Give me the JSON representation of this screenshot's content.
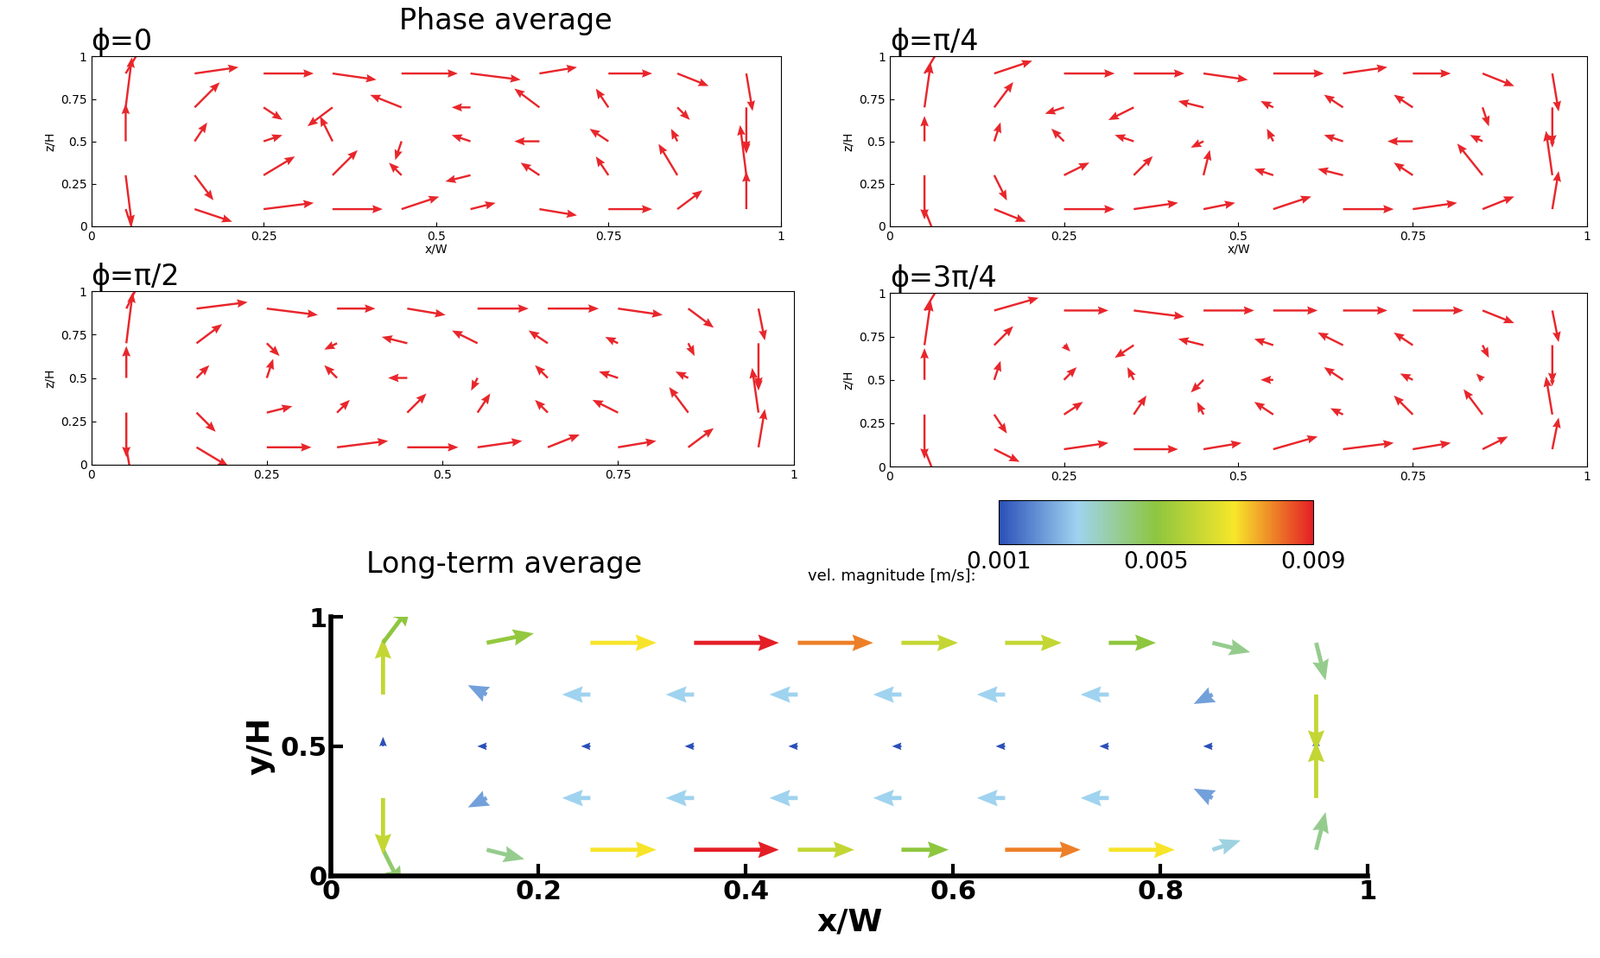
{
  "figure_texts": {
    "phase_heading": "Phase average",
    "long_term_heading": "Long-term average"
  },
  "chart_data": [
    {
      "type": "quiver",
      "title": "ϕ=0",
      "x_label": "x/W",
      "y_label": "z/H",
      "xlim": [
        0,
        1
      ],
      "ylim": [
        0,
        1
      ],
      "xticks": [
        0,
        0.25,
        0.5,
        0.75,
        1
      ],
      "yticks": [
        0,
        0.25,
        0.5,
        0.75,
        1
      ],
      "color": "#e8262b",
      "x": [
        0.05,
        0.15,
        0.25,
        0.35,
        0.45,
        0.55,
        0.65,
        0.75,
        0.85,
        0.95
      ],
      "y": [
        0.1,
        0.3,
        0.5,
        0.7,
        0.9
      ],
      "u": [
        [
          0.002,
          0.006,
          0.008,
          0.008,
          0.006,
          0.004,
          0.006,
          0.007,
          0.004,
          0.0
        ],
        [
          0.001,
          0.003,
          0.005,
          0.004,
          -0.002,
          -0.004,
          -0.003,
          -0.002,
          -0.003,
          -0.001
        ],
        [
          0.0,
          0.002,
          0.003,
          -0.002,
          -0.001,
          -0.003,
          -0.004,
          -0.003,
          -0.001,
          0.0
        ],
        [
          0.001,
          0.004,
          0.003,
          -0.004,
          -0.005,
          -0.003,
          -0.004,
          -0.002,
          0.002,
          0.0
        ],
        [
          0.003,
          0.007,
          0.008,
          0.007,
          0.009,
          0.008,
          0.006,
          0.007,
          0.005,
          0.001
        ]
      ],
      "v": [
        [
          -0.006,
          -0.002,
          0.001,
          0.0,
          0.002,
          0.001,
          -0.001,
          0.0,
          0.003,
          0.006
        ],
        [
          -0.008,
          -0.004,
          0.003,
          0.004,
          0.002,
          -0.001,
          0.002,
          0.003,
          0.005,
          0.008
        ],
        [
          0.006,
          0.003,
          0.001,
          0.004,
          -0.003,
          0.001,
          0.0,
          0.002,
          0.002,
          -0.002
        ],
        [
          0.008,
          0.004,
          -0.002,
          -0.003,
          0.002,
          0.0,
          0.003,
          0.003,
          -0.002,
          -0.007
        ],
        [
          0.005,
          0.001,
          0.0,
          -0.001,
          0.0,
          -0.001,
          0.001,
          0.0,
          -0.002,
          -0.006
        ]
      ]
    },
    {
      "type": "quiver",
      "title": "ϕ=π/4",
      "x_label": "x/W",
      "y_label": "z/H",
      "xlim": [
        0,
        1
      ],
      "ylim": [
        0,
        1
      ],
      "xticks": [
        0,
        0.25,
        0.5,
        0.75,
        1
      ],
      "yticks": [
        0,
        0.25,
        0.5,
        0.75,
        1
      ],
      "color": "#e8262b",
      "x": [
        0.05,
        0.15,
        0.25,
        0.35,
        0.45,
        0.55,
        0.65,
        0.75,
        0.85,
        0.95
      ],
      "y": [
        0.1,
        0.3,
        0.5,
        0.7,
        0.9
      ],
      "u": [
        [
          0.002,
          0.005,
          0.008,
          0.007,
          0.005,
          0.006,
          0.008,
          0.007,
          0.005,
          0.001
        ],
        [
          0.0,
          0.002,
          0.004,
          0.003,
          0.001,
          -0.003,
          -0.004,
          -0.003,
          -0.004,
          -0.001
        ],
        [
          0.0,
          0.001,
          -0.002,
          -0.003,
          -0.002,
          -0.001,
          -0.003,
          -0.004,
          -0.002,
          0.0
        ],
        [
          0.001,
          0.003,
          -0.003,
          -0.004,
          -0.004,
          -0.002,
          -0.003,
          -0.003,
          0.001,
          0.0
        ],
        [
          0.003,
          0.006,
          0.008,
          0.008,
          0.007,
          0.008,
          0.007,
          0.006,
          0.005,
          0.001
        ]
      ],
      "v": [
        [
          -0.005,
          -0.002,
          0.0,
          0.001,
          0.001,
          0.002,
          0.0,
          0.001,
          0.002,
          0.006
        ],
        [
          -0.007,
          -0.004,
          0.002,
          0.003,
          0.004,
          0.001,
          0.001,
          0.002,
          0.005,
          0.007
        ],
        [
          0.004,
          0.003,
          0.002,
          0.001,
          -0.001,
          0.002,
          0.001,
          0.0,
          0.001,
          -0.001
        ],
        [
          0.007,
          0.004,
          -0.001,
          -0.002,
          0.001,
          0.001,
          0.002,
          0.002,
          -0.003,
          -0.006
        ],
        [
          0.005,
          0.002,
          0.0,
          0.0,
          -0.001,
          0.0,
          0.001,
          0.0,
          -0.002,
          -0.006
        ]
      ]
    },
    {
      "type": "quiver",
      "title": "ϕ=π/2",
      "y_label": "z/H",
      "xlim": [
        0,
        1
      ],
      "ylim": [
        0,
        1
      ],
      "xticks": [
        0,
        0.25,
        0.5,
        0.75,
        1
      ],
      "yticks": [
        0,
        0.25,
        0.5,
        0.75,
        1
      ],
      "color": "#e8262b",
      "x": [
        0.05,
        0.15,
        0.25,
        0.35,
        0.45,
        0.55,
        0.65,
        0.75,
        0.85,
        0.95
      ],
      "y": [
        0.1,
        0.3,
        0.5,
        0.7,
        0.9
      ],
      "u": [
        [
          0.001,
          0.005,
          0.007,
          0.008,
          0.008,
          0.007,
          0.005,
          0.006,
          0.004,
          0.001
        ],
        [
          0.0,
          0.003,
          0.004,
          0.002,
          0.003,
          0.002,
          -0.002,
          -0.004,
          -0.003,
          -0.001
        ],
        [
          0.0,
          0.002,
          0.001,
          -0.002,
          -0.003,
          -0.001,
          -0.002,
          -0.003,
          -0.002,
          0.0
        ],
        [
          0.001,
          0.004,
          0.002,
          -0.002,
          -0.004,
          -0.004,
          -0.003,
          -0.002,
          0.001,
          0.0
        ],
        [
          0.003,
          0.008,
          0.008,
          0.006,
          0.006,
          0.008,
          0.008,
          0.007,
          0.004,
          0.001
        ]
      ],
      "v": [
        [
          -0.006,
          -0.003,
          0.0,
          0.001,
          0.0,
          0.001,
          0.002,
          0.001,
          0.003,
          0.006
        ],
        [
          -0.007,
          -0.003,
          0.001,
          0.002,
          0.003,
          0.003,
          0.002,
          0.002,
          0.004,
          0.007
        ],
        [
          0.005,
          0.002,
          0.003,
          0.002,
          0.0,
          -0.002,
          0.002,
          0.001,
          0.001,
          -0.002
        ],
        [
          0.008,
          0.003,
          -0.002,
          -0.001,
          0.001,
          0.002,
          0.002,
          0.001,
          -0.002,
          -0.007
        ],
        [
          0.006,
          0.001,
          -0.001,
          0.0,
          -0.001,
          0.0,
          0.0,
          -0.001,
          -0.003,
          -0.005
        ]
      ]
    },
    {
      "type": "quiver",
      "title": "ϕ=3π/4",
      "y_label": "z/H",
      "xlim": [
        0,
        1
      ],
      "ylim": [
        0,
        1
      ],
      "xticks": [
        0,
        0.25,
        0.5,
        0.75,
        1
      ],
      "yticks": [
        0,
        0.25,
        0.5,
        0.75,
        1
      ],
      "color": "#e8262b",
      "x": [
        0.05,
        0.15,
        0.25,
        0.35,
        0.45,
        0.55,
        0.65,
        0.75,
        0.85,
        0.95
      ],
      "y": [
        0.1,
        0.3,
        0.5,
        0.7,
        0.9
      ],
      "u": [
        [
          0.002,
          0.004,
          0.007,
          0.007,
          0.006,
          0.007,
          0.008,
          0.006,
          0.004,
          0.001
        ],
        [
          0.0,
          0.002,
          0.003,
          0.002,
          -0.001,
          -0.003,
          -0.002,
          -0.003,
          -0.003,
          -0.001
        ],
        [
          0.0,
          0.001,
          0.002,
          -0.001,
          -0.002,
          -0.002,
          -0.003,
          -0.002,
          -0.001,
          0.0
        ],
        [
          0.001,
          0.003,
          0.001,
          -0.003,
          -0.004,
          -0.003,
          -0.004,
          -0.003,
          0.001,
          0.0
        ],
        [
          0.003,
          0.007,
          0.007,
          0.008,
          0.008,
          0.007,
          0.007,
          0.008,
          0.005,
          0.001
        ]
      ],
      "v": [
        [
          -0.005,
          -0.002,
          0.001,
          0.0,
          0.001,
          0.002,
          0.001,
          0.001,
          0.002,
          0.005
        ],
        [
          -0.007,
          -0.003,
          0.002,
          0.003,
          0.002,
          0.002,
          0.001,
          0.003,
          0.004,
          0.006
        ],
        [
          0.005,
          0.003,
          0.002,
          0.002,
          -0.002,
          0.0,
          0.002,
          0.001,
          0.001,
          -0.001
        ],
        [
          0.007,
          0.003,
          -0.001,
          -0.002,
          0.001,
          0.001,
          0.002,
          0.002,
          -0.002,
          -0.006
        ],
        [
          0.005,
          0.002,
          0.0,
          -0.001,
          0.0,
          0.0,
          0.0,
          0.0,
          -0.002,
          -0.005
        ]
      ]
    },
    {
      "type": "quiver_colored",
      "x_label": "x/W",
      "y_label": "y/H",
      "xlim": [
        0,
        1
      ],
      "ylim": [
        0,
        1
      ],
      "xticks": [
        0,
        0.2,
        0.4,
        0.6,
        0.8,
        1
      ],
      "yticks": [
        0,
        0.5,
        1
      ],
      "colorbar": {
        "label": "vel. magnitude [m/s]:",
        "range": [
          0.001,
          0.009
        ],
        "ticks": [
          0.001,
          0.005,
          0.009
        ]
      },
      "x": [
        0.05,
        0.15,
        0.25,
        0.35,
        0.45,
        0.55,
        0.65,
        0.75,
        0.85,
        0.95
      ],
      "y": [
        0.1,
        0.3,
        0.5,
        0.7,
        0.9
      ],
      "u": [
        [
          0.002,
          0.004,
          0.007,
          0.009,
          0.006,
          0.005,
          0.008,
          0.007,
          0.003,
          0.001
        ],
        [
          0.0,
          -0.002,
          -0.003,
          -0.003,
          -0.003,
          -0.003,
          -0.003,
          -0.003,
          -0.002,
          0.0
        ],
        [
          0.0,
          -0.001,
          -0.001,
          -0.001,
          -0.001,
          -0.001,
          -0.001,
          -0.001,
          -0.001,
          0.0
        ],
        [
          0.0,
          -0.002,
          -0.003,
          -0.003,
          -0.003,
          -0.003,
          -0.003,
          -0.003,
          -0.002,
          0.0
        ],
        [
          0.003,
          0.005,
          0.007,
          0.009,
          0.008,
          0.006,
          0.006,
          0.005,
          0.004,
          0.001
        ]
      ],
      "v": [
        [
          -0.004,
          -0.001,
          0.0,
          0.0,
          0.0,
          0.0,
          0.0,
          0.0,
          0.001,
          0.004
        ],
        [
          -0.006,
          -0.001,
          0.0,
          0.0,
          0.0,
          0.0,
          0.0,
          0.0,
          0.001,
          0.006
        ],
        [
          0.001,
          0.0,
          0.0,
          0.0,
          0.0,
          0.0,
          0.0,
          0.0,
          0.0,
          0.001
        ],
        [
          0.006,
          0.001,
          0.0,
          0.0,
          0.0,
          0.0,
          0.0,
          0.0,
          -0.001,
          -0.006
        ],
        [
          0.004,
          0.001,
          0.0,
          0.0,
          0.0,
          0.0,
          0.0,
          0.0,
          -0.001,
          -0.004
        ]
      ]
    }
  ]
}
